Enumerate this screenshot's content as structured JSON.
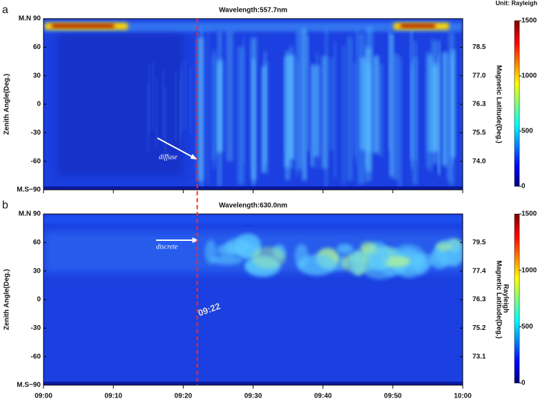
{
  "chart_data": [
    {
      "type": "keogram",
      "panel_label": "a",
      "title": "Wavelength:557.7nm",
      "y_label": "Zenith Angle(Deg.)",
      "ylim": [
        -90,
        90
      ],
      "yticks": [
        {
          "value": 90,
          "label": "M.N 90"
        },
        60,
        30,
        0,
        -30,
        -60,
        {
          "value": -90,
          "label": "M.S−90"
        }
      ],
      "y2_label": "Magnetic Latitude(Deg.)",
      "y2ticks": [
        78.5,
        {
          "value": 77,
          "label": "77.0"
        },
        76.3,
        75.5,
        {
          "value": 74,
          "label": "74.0"
        }
      ],
      "colorbar_label": "Unit: Rayleigh",
      "clim": [
        0,
        1500
      ],
      "cticks": [
        0,
        500,
        1000,
        1500
      ],
      "annotations": [
        {
          "text": "diffuse"
        }
      ]
    },
    {
      "type": "keogram",
      "panel_label": "b",
      "title": "Wavelength:630.0nm",
      "y_label": "Zenith Angle(Deg.)",
      "ylim": [
        -90,
        90
      ],
      "yticks": [
        {
          "value": 90,
          "label": "M.N 90"
        },
        60,
        30,
        0,
        -30,
        -60,
        {
          "value": -90,
          "label": "M.S−90"
        }
      ],
      "y2_label": "Magnetic Latitude(Deg.)",
      "y2ticks": [
        79.5,
        77.4,
        76.3,
        75.2,
        73.1
      ],
      "colorbar_label": "Rayleigh",
      "clim": [
        0,
        1500
      ],
      "cticks": [
        0,
        500,
        1000,
        1500
      ],
      "xticks": [
        "09:00",
        "09:10",
        "09:20",
        "09:30",
        "09:40",
        "09:50",
        "10:00"
      ],
      "annotations": [
        {
          "text": "discrete"
        },
        {
          "text": "09:22"
        }
      ]
    }
  ]
}
